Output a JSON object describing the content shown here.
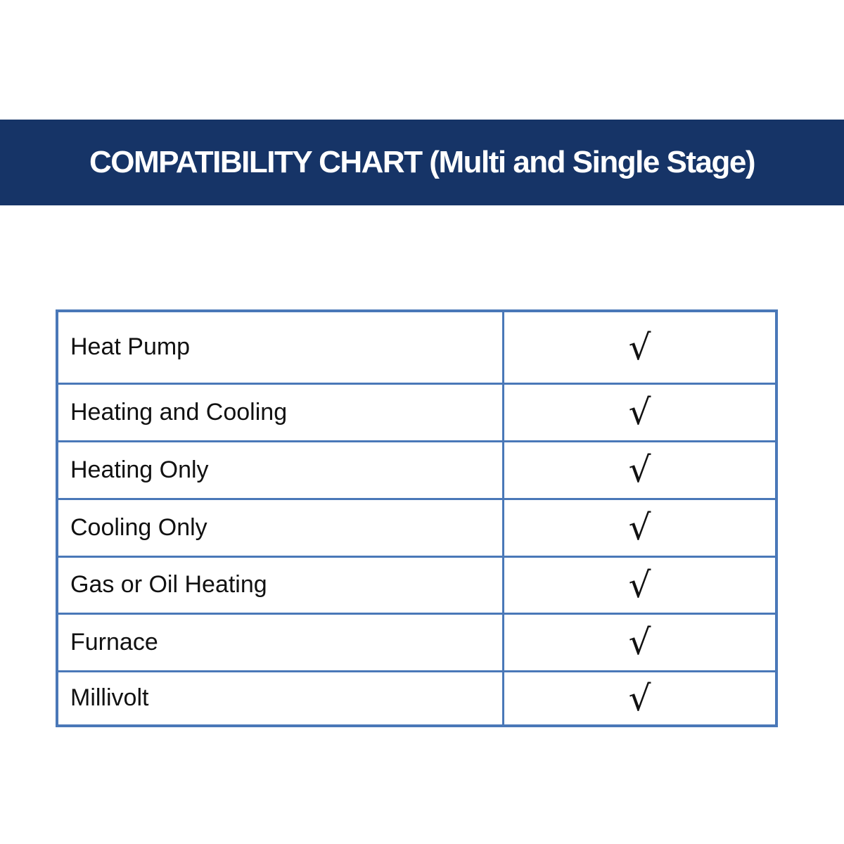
{
  "title": "COMPATIBILITY CHART (Multi and Single Stage)",
  "colors": {
    "banner": "#163467",
    "border": "#4a78b8"
  },
  "rows": [
    {
      "label": "Heat Pump",
      "mark": "√"
    },
    {
      "label": "Heating and Cooling",
      "mark": "√"
    },
    {
      "label": "Heating Only",
      "mark": "√"
    },
    {
      "label": "Cooling Only",
      "mark": "√"
    },
    {
      "label": "Gas or Oil Heating",
      "mark": "√"
    },
    {
      "label": "Furnace",
      "mark": "√"
    },
    {
      "label": "Millivolt",
      "mark": "√"
    }
  ]
}
